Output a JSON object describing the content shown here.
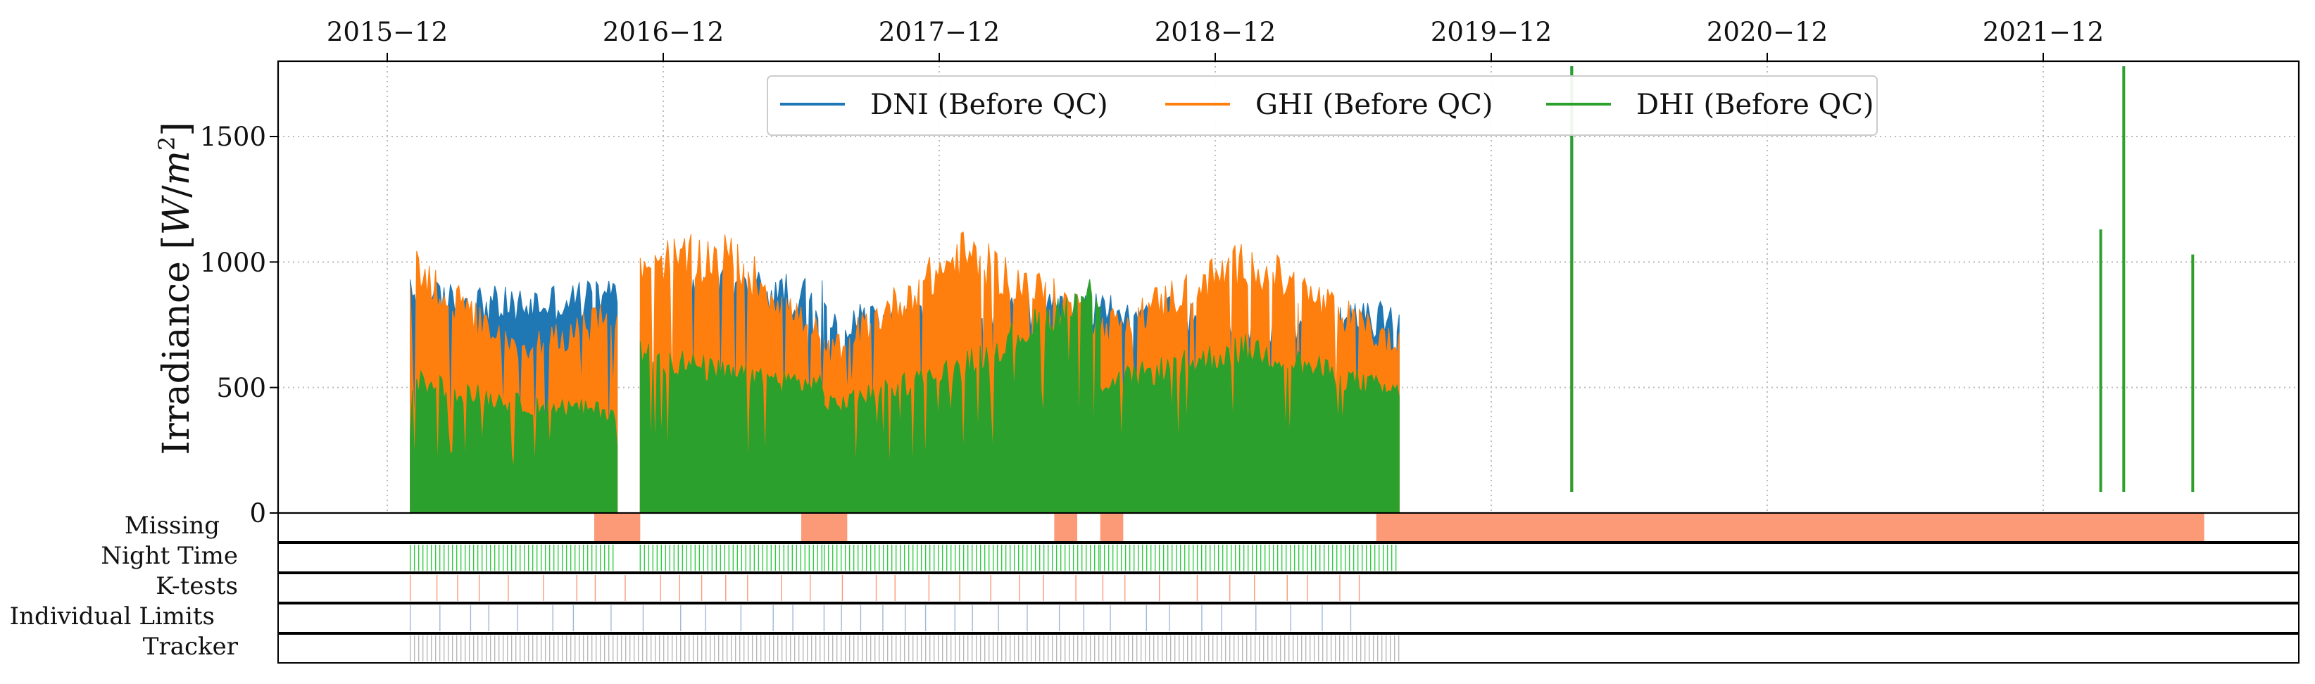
{
  "chart_data": {
    "type": "line",
    "title": "",
    "xlabel": "",
    "ylabel": "Irradiance [W/m²]",
    "ylabel_parts": {
      "text": "Irradiance [",
      "unit_letter": "W",
      "slash": "/",
      "m": "m",
      "exp": "2",
      "close": "]"
    },
    "ylim": [
      0,
      1800
    ],
    "y_ticks": [
      0,
      500,
      1000,
      1500
    ],
    "x_ticks": [
      "2015−12",
      "2016−12",
      "2017−12",
      "2018−12",
      "2019−12",
      "2020−12",
      "2021−12"
    ],
    "x_range_months": [
      "2015-08",
      "2022-11"
    ],
    "grid": true,
    "legend_position": "top-center",
    "series": [
      {
        "name": "DNI (Before QC)",
        "color": "#1f77b4",
        "segments": [
          {
            "start": "2016-01",
            "end": "2016-09",
            "peak_start": 940,
            "peak_mid": 900,
            "peak_end": 950
          },
          {
            "start": "2016-11",
            "end": "2017-06",
            "peak_start": 900,
            "peak_mid": 980,
            "peak_end": 940
          },
          {
            "start": "2017-07",
            "end": "2018-06",
            "peak_start": 840,
            "peak_mid": 860,
            "peak_end": 880
          },
          {
            "start": "2018-07",
            "end": "2019-07",
            "peak_start": 900,
            "peak_mid": 820,
            "peak_end": 850
          }
        ],
        "spikes": [
          {
            "month": "2020-03",
            "value": 1780
          }
        ]
      },
      {
        "name": "GHI (Before QC)",
        "color": "#ff7f0e",
        "segments": [
          {
            "start": "2016-01",
            "end": "2016-09",
            "peak_start": 1090,
            "peak_mid": 700,
            "peak_end": 860
          },
          {
            "start": "2016-11",
            "end": "2017-06",
            "peak_start": 1100,
            "peak_mid": 1120,
            "peak_end": 750
          },
          {
            "start": "2017-07",
            "end": "2018-06",
            "peak_start": 680,
            "peak_mid": 1130,
            "peak_end": 840
          },
          {
            "start": "2018-07",
            "end": "2019-07",
            "peak_start": 800,
            "peak_mid": 1100,
            "peak_end": 720
          }
        ],
        "spikes": [
          {
            "month": "2020-03",
            "value": 1000
          }
        ]
      },
      {
        "name": "DHI (Before QC)",
        "color": "#2ca02c",
        "segments": [
          {
            "start": "2016-01",
            "end": "2016-09",
            "peak_start": 580,
            "peak_mid": 480,
            "peak_end": 440
          },
          {
            "start": "2016-11",
            "end": "2017-06",
            "peak_start": 700,
            "peak_mid": 600,
            "peak_end": 560
          },
          {
            "start": "2017-07",
            "end": "2018-06",
            "peak_start": 460,
            "peak_mid": 640,
            "peak_end": 980
          },
          {
            "start": "2018-07",
            "end": "2019-07",
            "peak_start": 560,
            "peak_mid": 720,
            "peak_end": 520
          }
        ],
        "spikes": [
          {
            "month": "2020-03",
            "value": 1780
          },
          {
            "month": "2022-02",
            "value": 1130
          },
          {
            "month": "2022-03",
            "value": 1780
          },
          {
            "month": "2022-06",
            "value": 1030
          }
        ]
      }
    ],
    "flag_rows": [
      {
        "label": "Missing",
        "color": "#fc9a78",
        "kind": "block",
        "ranges": [
          [
            "2016-09",
            "2016-10"
          ],
          [
            "2017-06",
            "2017-07"
          ],
          [
            "2018-05",
            "2018-05"
          ],
          [
            "2018-07",
            "2018-07"
          ],
          [
            "2019-07",
            "2022-06"
          ]
        ]
      },
      {
        "label": "Night Time",
        "color": "#2ecc40",
        "kind": "ticks",
        "ranges": [
          [
            "2016-01",
            "2016-09"
          ],
          [
            "2016-11",
            "2017-06"
          ],
          [
            "2017-07",
            "2018-06"
          ],
          [
            "2018-07",
            "2019-07"
          ]
        ]
      },
      {
        "label": "K-tests",
        "color": "#fc9a78",
        "kind": "sparse",
        "ranges": [
          [
            "2016-01",
            "2019-06"
          ]
        ]
      },
      {
        "label": "Individual Limits",
        "color": "#9fb7d9",
        "kind": "sparse",
        "ranges": [
          [
            "2016-01",
            "2019-06"
          ]
        ]
      },
      {
        "label": "Tracker",
        "color": "#b8b8b8",
        "kind": "ticks",
        "ranges": [
          [
            "2016-01",
            "2019-07"
          ]
        ]
      }
    ]
  }
}
